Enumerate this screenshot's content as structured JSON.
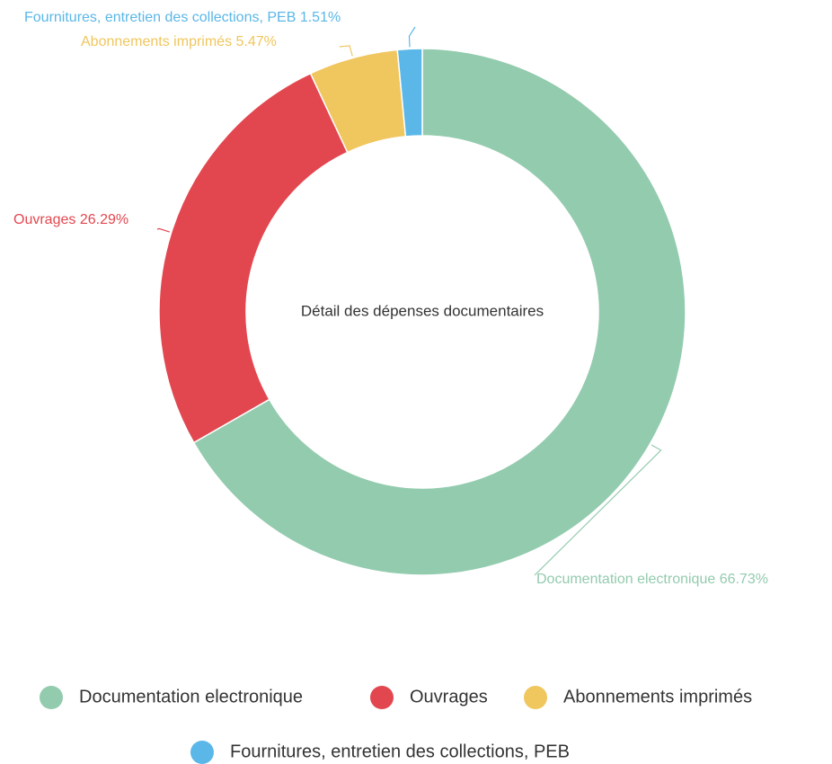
{
  "chart_data": {
    "type": "donut",
    "title": "Détail des dépenses documentaires",
    "categories": [
      "Documentation electronique",
      "Ouvrages",
      "Abonnements imprimés",
      "Fournitures, entretien des collections, PEB"
    ],
    "values": [
      66.73,
      26.29,
      5.47,
      1.51
    ],
    "value_labels": [
      "66.73%",
      "26.29%",
      "5.47%",
      "1.51%"
    ],
    "colors": [
      "#93cbae",
      "#e2474f",
      "#f0c65e",
      "#5ab7e8"
    ],
    "legend": "bottom"
  }
}
